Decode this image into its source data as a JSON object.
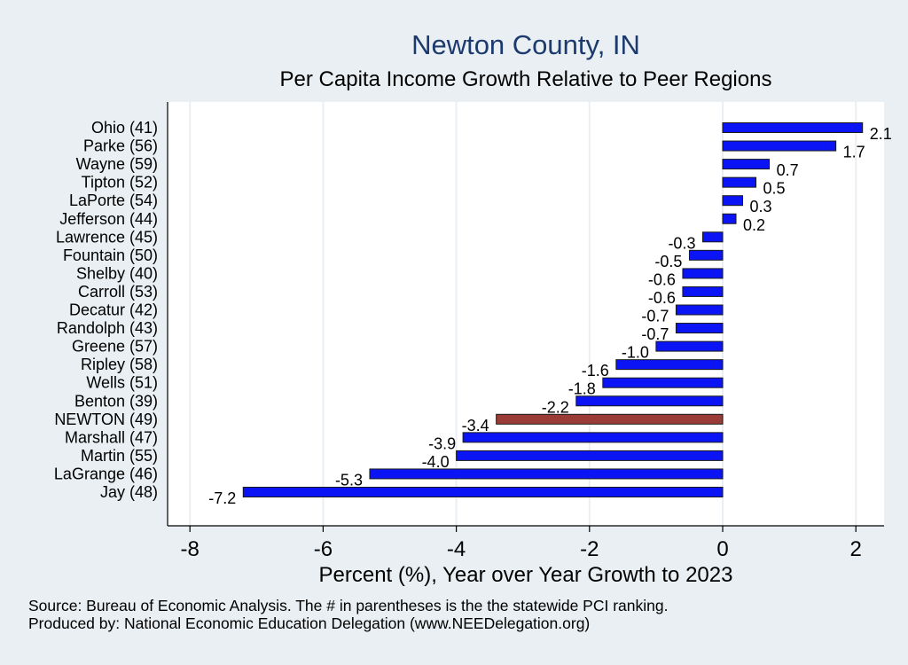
{
  "chart_data": {
    "type": "bar",
    "orientation": "horizontal",
    "title": "Newton County, IN",
    "subtitle": "Per Capita Income Growth Relative to Peer Regions",
    "xlabel": "Percent (%), Year over Year Growth to 2023",
    "ylabel": "",
    "xlim": [
      -8.5,
      2.4
    ],
    "xticks": [
      -8,
      -6,
      -4,
      -2,
      0,
      2
    ],
    "xtick_labels": [
      "-8",
      "-6",
      "-4",
      "-2",
      "0",
      "2"
    ],
    "grid": true,
    "legend": "none",
    "categories": [
      "Ohio (41)",
      "Parke (56)",
      "Wayne (59)",
      "Tipton (52)",
      "LaPorte (54)",
      "Jefferson (44)",
      "Lawrence (45)",
      "Fountain (50)",
      "Shelby (40)",
      "Carroll (53)",
      "Decatur (42)",
      "Randolph (43)",
      "Greene (57)",
      "Ripley (58)",
      "Wells (51)",
      "Benton (39)",
      "NEWTON (49)",
      "Marshall (47)",
      "Martin (55)",
      "LaGrange (46)",
      "Jay (48)"
    ],
    "values": [
      2.1,
      1.7,
      0.7,
      0.5,
      0.3,
      0.2,
      -0.3,
      -0.5,
      -0.6,
      -0.6,
      -0.7,
      -0.7,
      -1.0,
      -1.6,
      -1.8,
      -2.2,
      -3.4,
      -3.9,
      -4.0,
      -5.3,
      -7.2
    ],
    "value_labels": [
      "2.1",
      "1.7",
      "0.7",
      "0.5",
      "0.3",
      "0.2",
      "-0.3",
      "-0.5",
      "-0.6",
      "-0.6",
      "-0.7",
      "-0.7",
      "-1.0",
      "-1.6",
      "-1.8",
      "-2.2",
      "-3.4",
      "-3.9",
      "-4.0",
      "-5.3",
      "-7.2"
    ],
    "highlight_category": "NEWTON (49)",
    "colors": {
      "bar": "#0a14f5",
      "highlight": "#9b3b38",
      "title": "#1c3a6e",
      "plot_bg": "#ffffff",
      "page_bg": "#e9eff2",
      "grid": "#e9eff2"
    }
  },
  "footer": {
    "source_line": "Source: Bureau of Economic Analysis. The # in parentheses is the the statewide PCI ranking.",
    "producer_line": "Produced by: National Economic Education Delegation (www.NEEDelegation.org)"
  }
}
